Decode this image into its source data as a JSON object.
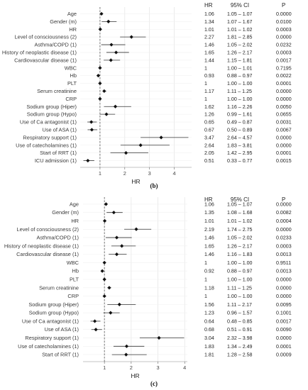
{
  "chart_data": [
    {
      "type": "forest",
      "caption": "(b)",
      "xlabel": "HR",
      "xlim": [
        0.2,
        4.7
      ],
      "xticks": [
        1,
        2,
        3,
        4
      ],
      "reference_line": 1,
      "grid": true,
      "table_headers": [
        "HR",
        "95% CI",
        "P"
      ],
      "rows": [
        {
          "label": "Age",
          "hr": 1.06,
          "lo": 1.05,
          "hi": 1.07,
          "hr_text": "1.06",
          "ci_text": "1.05 – 1.07",
          "p_text": "0.0000"
        },
        {
          "label": "Gender (m)",
          "hr": 1.34,
          "lo": 1.07,
          "hi": 1.67,
          "hr_text": "1.34",
          "ci_text": "1.07 – 1.67",
          "p_text": "0.0100"
        },
        {
          "label": "HR",
          "hr": 1.01,
          "lo": 1.01,
          "hi": 1.02,
          "hr_text": "1.01",
          "ci_text": "1.01 – 1.02",
          "p_text": "0.0003"
        },
        {
          "label": "Level of consciousness (2)",
          "hr": 2.27,
          "lo": 1.81,
          "hi": 2.85,
          "hr_text": "2.27",
          "ci_text": "1.81 – 2.85",
          "p_text": "0.0000"
        },
        {
          "label": "Asthma/COPD (1)",
          "hr": 1.46,
          "lo": 1.05,
          "hi": 2.02,
          "hr_text": "1.46",
          "ci_text": "1.05 – 2.02",
          "p_text": "0.0232"
        },
        {
          "label": "History of neoplastic disease (1)",
          "hr": 1.65,
          "lo": 1.26,
          "hi": 2.17,
          "hr_text": "1.65",
          "ci_text": "1.26 – 2.17",
          "p_text": "0.0003"
        },
        {
          "label": "Cardiovascular disease (1)",
          "hr": 1.44,
          "lo": 1.15,
          "hi": 1.81,
          "hr_text": "1.44",
          "ci_text": "1.15 – 1.81",
          "p_text": "0.0017"
        },
        {
          "label": "WBC",
          "hr": 1,
          "lo": 1.0,
          "hi": 1.01,
          "hr_text": "1",
          "ci_text": "1.00 – 1.01",
          "p_text": "0.7195"
        },
        {
          "label": "Hb",
          "hr": 0.93,
          "lo": 0.88,
          "hi": 0.97,
          "hr_text": "0.93",
          "ci_text": "0.88 – 0.97",
          "p_text": "0.0022"
        },
        {
          "label": "PLT",
          "hr": 1,
          "lo": 1.0,
          "hi": 1.0,
          "hr_text": "1",
          "ci_text": "1.00 – 1.00",
          "p_text": "0.0001"
        },
        {
          "label": "Serum creatinine",
          "hr": 1.17,
          "lo": 1.11,
          "hi": 1.25,
          "hr_text": "1.17",
          "ci_text": "1.11 – 1.25",
          "p_text": "0.0000"
        },
        {
          "label": "CRP",
          "hr": 1,
          "lo": 1.0,
          "hi": 1.0,
          "hr_text": "1",
          "ci_text": "1.00 – 1.00",
          "p_text": "0.0000"
        },
        {
          "label": "Sodium group (Hiper)",
          "hr": 1.62,
          "lo": 1.16,
          "hi": 2.26,
          "hr_text": "1.62",
          "ci_text": "1.16 – 2.26",
          "p_text": "0.0050"
        },
        {
          "label": "Sodium group (Hypo)",
          "hr": 1.26,
          "lo": 0.99,
          "hi": 1.61,
          "hr_text": "1.26",
          "ci_text": "0.99 – 1.61",
          "p_text": "0.0655"
        },
        {
          "label": "Use of Ca antagonist (1)",
          "hr": 0.65,
          "lo": 0.49,
          "hi": 0.87,
          "hr_text": "0.65",
          "ci_text": "0.49 – 0.87",
          "p_text": "0.0031"
        },
        {
          "label": "Use of ASA (1)",
          "hr": 0.67,
          "lo": 0.5,
          "hi": 0.89,
          "hr_text": "0.67",
          "ci_text": "0.50 – 0.89",
          "p_text": "0.0067"
        },
        {
          "label": "Respiratory support (1)",
          "hr": 3.47,
          "lo": 2.64,
          "hi": 4.57,
          "hr_text": "3.47",
          "ci_text": "2.64 – 4.57",
          "p_text": "0.0000"
        },
        {
          "label": "Use of catecholamines (1)",
          "hr": 2.64,
          "lo": 1.83,
          "hi": 3.81,
          "hr_text": "2.64",
          "ci_text": "1.83 – 3.81",
          "p_text": "0.0000"
        },
        {
          "label": "Start of RRT (1)",
          "hr": 2.05,
          "lo": 1.42,
          "hi": 2.95,
          "hr_text": "2.05",
          "ci_text": "1.42 – 2.95",
          "p_text": "0.0001"
        },
        {
          "label": "ICU admission (1)",
          "hr": 0.51,
          "lo": 0.33,
          "hi": 0.77,
          "hr_text": "0.51",
          "ci_text": "0.33 – 0.77",
          "p_text": "0.0015"
        }
      ]
    },
    {
      "type": "forest",
      "caption": "(c)",
      "xlabel": "HR",
      "xlim": [
        0.2,
        4.1
      ],
      "xticks": [
        1,
        2,
        3,
        4
      ],
      "reference_line": 1,
      "grid": true,
      "table_headers": [
        "HR",
        "95% CI",
        "P"
      ],
      "rows": [
        {
          "label": "Age",
          "hr": 1.06,
          "lo": 1.05,
          "hi": 1.07,
          "hr_text": "1.06",
          "ci_text": "1.05 – 1.07",
          "p_text": "0.0000"
        },
        {
          "label": "Gender (m)",
          "hr": 1.35,
          "lo": 1.08,
          "hi": 1.68,
          "hr_text": "1.35",
          "ci_text": "1.08 – 1.68",
          "p_text": "0.0082"
        },
        {
          "label": "HR",
          "hr": 1.01,
          "lo": 1.01,
          "hi": 1.02,
          "hr_text": "1.01",
          "ci_text": "1.01 – 1.02",
          "p_text": "0.0004"
        },
        {
          "label": "Level of consciousness (2)",
          "hr": 2.19,
          "lo": 1.74,
          "hi": 2.75,
          "hr_text": "2.19",
          "ci_text": "1.74 – 2.75",
          "p_text": "0.0000"
        },
        {
          "label": "Asthma/COPD (1)",
          "hr": 1.46,
          "lo": 1.05,
          "hi": 2.02,
          "hr_text": "1.46",
          "ci_text": "1.05 – 2.02",
          "p_text": "0.0233"
        },
        {
          "label": "History of neoplastic disease (1)",
          "hr": 1.65,
          "lo": 1.26,
          "hi": 2.17,
          "hr_text": "1.65",
          "ci_text": "1.26 – 2.17",
          "p_text": "0.0003"
        },
        {
          "label": "Cardiovascular disease (1)",
          "hr": 1.46,
          "lo": 1.16,
          "hi": 1.83,
          "hr_text": "1.46",
          "ci_text": "1.16 – 1.83",
          "p_text": "0.0013"
        },
        {
          "label": "WBC",
          "hr": 1,
          "lo": 1.0,
          "hi": 1.0,
          "hr_text": "1",
          "ci_text": "1.00 – 1.00",
          "p_text": "0.9511"
        },
        {
          "label": "Hb",
          "hr": 0.92,
          "lo": 0.88,
          "hi": 0.97,
          "hr_text": "0.92",
          "ci_text": "0.88 – 0.97",
          "p_text": "0.0013"
        },
        {
          "label": "PLT",
          "hr": 1,
          "lo": 1.0,
          "hi": 1.0,
          "hr_text": "1",
          "ci_text": "1.00 – 1.00",
          "p_text": "0.0000"
        },
        {
          "label": "Serum creatinine",
          "hr": 1.18,
          "lo": 1.11,
          "hi": 1.25,
          "hr_text": "1.18",
          "ci_text": "1.11 – 1.25",
          "p_text": "0.0000"
        },
        {
          "label": "CRP",
          "hr": 1,
          "lo": 1.0,
          "hi": 1.0,
          "hr_text": "1",
          "ci_text": "1.00 – 1.00",
          "p_text": "0.0000"
        },
        {
          "label": "Sodium group (Hiper)",
          "hr": 1.56,
          "lo": 1.11,
          "hi": 2.17,
          "hr_text": "1.56",
          "ci_text": "1.11 – 2.17",
          "p_text": "0.0095"
        },
        {
          "label": "Sodium group (Hypo)",
          "hr": 1.23,
          "lo": 0.96,
          "hi": 1.57,
          "hr_text": "1.23",
          "ci_text": "0.96 – 1.57",
          "p_text": "0.1001"
        },
        {
          "label": "Use of Ca antagonist (1)",
          "hr": 0.64,
          "lo": 0.48,
          "hi": 0.85,
          "hr_text": "0.64",
          "ci_text": "0.48 – 0.85",
          "p_text": "0.0017"
        },
        {
          "label": "Use of ASA (1)",
          "hr": 0.68,
          "lo": 0.51,
          "hi": 0.91,
          "hr_text": "0.68",
          "ci_text": "0.51 – 0.91",
          "p_text": "0.0090"
        },
        {
          "label": "Respiratory support (1)",
          "hr": 3.04,
          "lo": 2.32,
          "hi": 3.98,
          "hr_text": "3.04",
          "ci_text": "2.32 – 3.98",
          "p_text": "0.0000"
        },
        {
          "label": "Use of catecholamines (1)",
          "hr": 1.83,
          "lo": 1.34,
          "hi": 2.49,
          "hr_text": "1.83",
          "ci_text": "1.34 – 2.49",
          "p_text": "0.0001"
        },
        {
          "label": "Start of RRT (1)",
          "hr": 1.81,
          "lo": 1.28,
          "hi": 2.58,
          "hr_text": "1.81",
          "ci_text": "1.28 – 2.58",
          "p_text": "0.0009"
        }
      ]
    }
  ]
}
